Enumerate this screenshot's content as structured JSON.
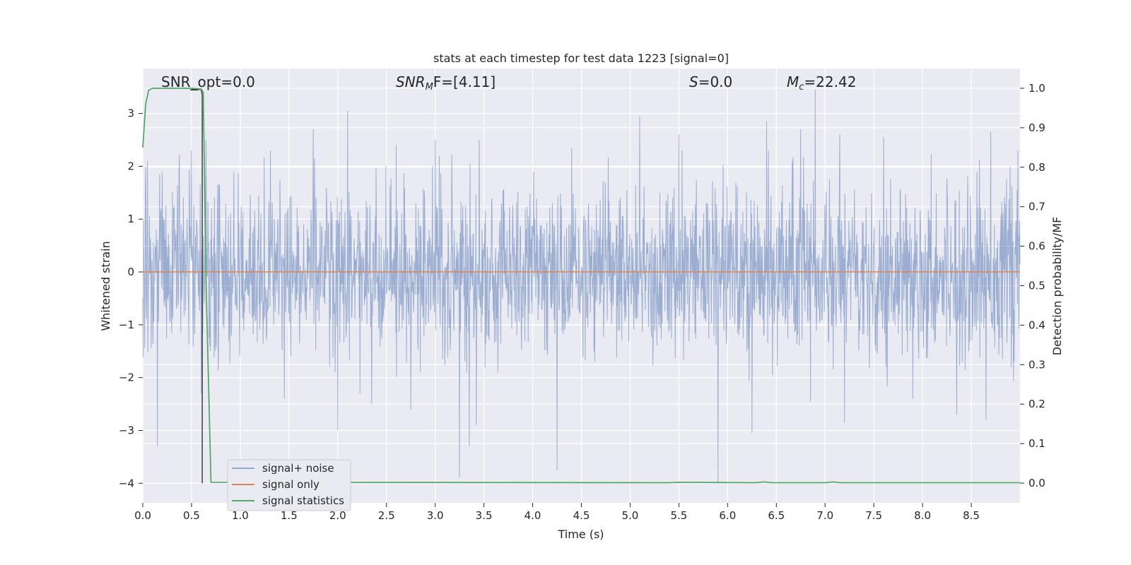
{
  "chart_data": {
    "type": "line",
    "title": "stats at each timestep for test data 1223 [signal=0]",
    "xlabel": "Time (s)",
    "ylabel": "Whitened strain",
    "y2label": "Detection probability/MF",
    "xlim": [
      0.0,
      9.0
    ],
    "ylim": [
      -4.37,
      3.85
    ],
    "y2lim": [
      -0.05,
      1.05
    ],
    "x_ticks": [
      "0.0",
      "0.5",
      "1.0",
      "1.5",
      "2.0",
      "2.5",
      "3.0",
      "3.5",
      "4.0",
      "4.5",
      "5.0",
      "5.5",
      "6.0",
      "6.5",
      "7.0",
      "7.5",
      "8.0",
      "8.5"
    ],
    "y_ticks": [
      "−4",
      "−3",
      "−2",
      "−1",
      "0",
      "1",
      "2",
      "3"
    ],
    "y2_ticks": [
      "0.0",
      "0.1",
      "0.2",
      "0.3",
      "0.4",
      "0.5",
      "0.6",
      "0.7",
      "0.8",
      "0.9",
      "1.0"
    ],
    "grid": true,
    "legend_position": "lower-left",
    "annotations": {
      "snr_opt": "SNR_opt=0.0",
      "snr_mf_base": "SNR",
      "snr_mf_sub": "M",
      "snr_mf_rest": "F=[4.11]",
      "s_italic": "S",
      "s_rest": "=0.0",
      "mc_base": "M",
      "mc_sub": "c",
      "mc_rest": "=22.42"
    },
    "series": [
      {
        "name": "signal+ noise",
        "color": "#4c72b0",
        "axis": "left",
        "peaks_positive": [
          [
            0.05,
            2.1
          ],
          [
            0.2,
            1.9
          ],
          [
            0.5,
            2.3
          ],
          [
            0.65,
            2.5
          ],
          [
            1.45,
            2.7
          ],
          [
            1.75,
            2.7
          ],
          [
            2.1,
            3.05
          ],
          [
            2.6,
            2.4
          ],
          [
            3.0,
            2.5
          ],
          [
            3.45,
            2.5
          ],
          [
            4.4,
            2.35
          ],
          [
            5.1,
            2.95
          ],
          [
            5.5,
            2.6
          ],
          [
            5.9,
            2.25
          ],
          [
            6.4,
            2.85
          ],
          [
            6.75,
            2.7
          ],
          [
            6.9,
            3.45
          ],
          [
            7.15,
            2.6
          ],
          [
            7.6,
            2.55
          ],
          [
            8.35,
            2.85
          ],
          [
            8.7,
            2.65
          ],
          [
            8.9,
            2.0
          ]
        ],
        "peaks_negative": [
          [
            0.15,
            -3.3
          ],
          [
            0.6,
            -2.3
          ],
          [
            1.45,
            -2.4
          ],
          [
            2.0,
            -3.0
          ],
          [
            2.35,
            -2.5
          ],
          [
            2.75,
            -2.6
          ],
          [
            3.25,
            -3.9
          ],
          [
            3.35,
            -3.3
          ],
          [
            3.42,
            -2.9
          ],
          [
            4.25,
            -3.75
          ],
          [
            5.9,
            -4.0
          ],
          [
            6.25,
            -3.05
          ],
          [
            6.85,
            -2.45
          ],
          [
            7.2,
            -2.85
          ],
          [
            7.9,
            -2.4
          ],
          [
            8.35,
            -2.7
          ],
          [
            8.65,
            -2.8
          ]
        ],
        "noise_std": 0.78
      },
      {
        "name": "signal only",
        "color": "#dd8452",
        "axis": "left",
        "x": [
          0.0,
          9.0
        ],
        "y": [
          0.0,
          0.0
        ]
      },
      {
        "name": "signal statistics",
        "color": "#55a868",
        "axis": "right",
        "x": [
          0.0,
          0.03,
          0.06,
          0.1,
          0.5,
          0.6,
          0.62,
          0.65,
          0.7,
          5.4,
          5.5,
          6.3,
          6.37,
          6.45,
          7.0,
          7.08,
          7.15,
          8.2,
          9.0
        ],
        "y": [
          0.85,
          0.96,
          0.995,
          1.0,
          1.0,
          0.998,
          0.99,
          0.5,
          0.002,
          0.001,
          0.002,
          0.001,
          0.003,
          0.001,
          0.001,
          0.003,
          0.001,
          0.001,
          0.001
        ]
      },
      {
        "name": "",
        "color": "#404040",
        "axis": "left",
        "x": [
          0.5,
          0.6,
          0.61,
          0.61
        ],
        "y": [
          3.45,
          3.45,
          3.35,
          -4.0
        ]
      }
    ]
  },
  "colors": {
    "axes_background": "#eaeaf2",
    "grid": "#ffffff",
    "legend_background": "#eaeaf2",
    "legend_border": "#cccccc"
  }
}
